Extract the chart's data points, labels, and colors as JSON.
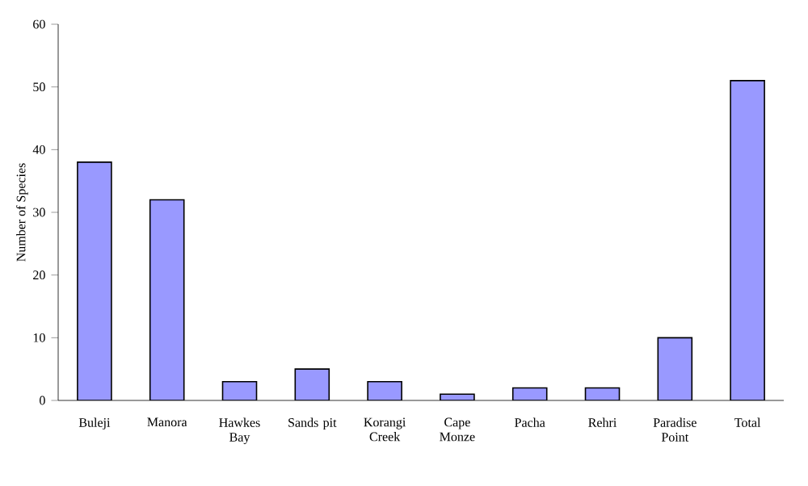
{
  "chart_data": {
    "type": "bar",
    "ylabel": "Number of Species",
    "categories": [
      "Buleji",
      "Manora",
      "Hawkes Bay",
      "Sands pit",
      "Korangi Creek",
      "Cape Monze",
      "Pacha",
      "Rehri",
      "Paradise Point",
      "Total"
    ],
    "values": [
      38,
      32,
      3,
      5,
      3,
      1,
      2,
      2,
      10,
      51
    ],
    "color": "#9999ff",
    "ylim": [
      0,
      60
    ],
    "yticks": [
      0,
      10,
      20,
      30,
      40,
      50,
      60
    ]
  }
}
